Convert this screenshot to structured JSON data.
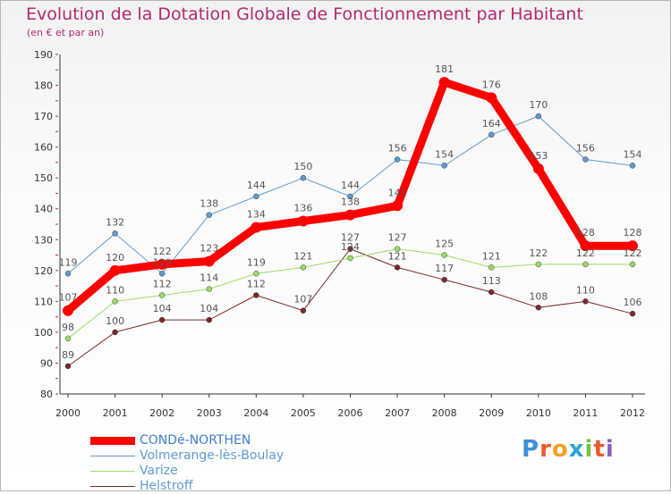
{
  "chart_data": {
    "type": "line",
    "title": "Evolution de la Dotation Globale de Fonctionnement par Habitant",
    "subtitle": "(en € et par an)",
    "xlabel": "",
    "ylabel": "",
    "categories": [
      "2000",
      "2001",
      "2002",
      "2003",
      "2004",
      "2005",
      "2006",
      "2007",
      "2008",
      "2009",
      "2010",
      "2011",
      "2012"
    ],
    "ylim": [
      80,
      190
    ],
    "yticks": [
      80,
      90,
      100,
      110,
      120,
      130,
      140,
      150,
      160,
      170,
      180,
      190
    ],
    "grid": false,
    "legend_position": "bottom-left",
    "series": [
      {
        "name": "CONDé-NORTHEN",
        "color": "#ff0000",
        "values": [
          107,
          120,
          122,
          123,
          134,
          136,
          138,
          141,
          181,
          176,
          153,
          128,
          128
        ]
      },
      {
        "name": "Volmerange-lès-Boulay",
        "color": "#5f9bd0",
        "values": [
          119,
          132,
          119,
          138,
          144,
          150,
          144,
          156,
          154,
          164,
          170,
          156,
          154
        ]
      },
      {
        "name": "Varize",
        "color": "#99dd66",
        "values": [
          98,
          110,
          112,
          114,
          119,
          121,
          124,
          127,
          125,
          121,
          122,
          122,
          122
        ]
      },
      {
        "name": "Helstroff",
        "color": "#7a2828",
        "values": [
          89,
          100,
          104,
          104,
          112,
          107,
          127,
          121,
          117,
          113,
          108,
          110,
          106
        ]
      }
    ]
  },
  "logo": {
    "letters": [
      "P",
      "r",
      "o",
      "x",
      "i",
      "t",
      "i"
    ],
    "colors": [
      "#3d8fd6",
      "#e85c2a",
      "#f2a325",
      "#2aa6cf",
      "#7ac143",
      "#e85c2a",
      "#8a5fc1"
    ]
  }
}
